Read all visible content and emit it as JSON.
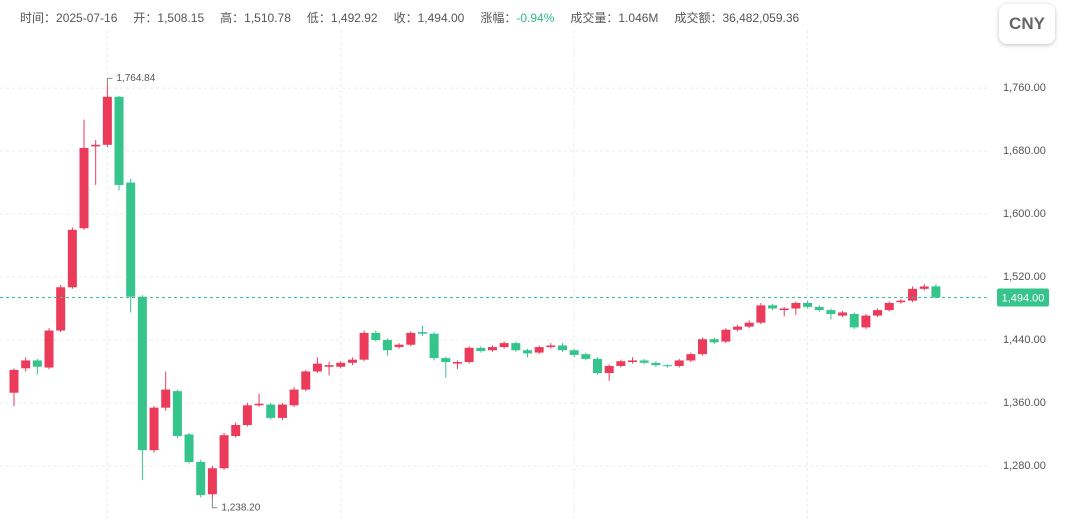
{
  "header": {
    "items": [
      {
        "label": "时间：",
        "value": "2025-07-16"
      },
      {
        "label": "开：",
        "value": "1,508.15"
      },
      {
        "label": "高：",
        "value": "1,510.78"
      },
      {
        "label": "低：",
        "value": "1,492.92"
      },
      {
        "label": "收：",
        "value": "1,494.00"
      },
      {
        "label": "涨幅：",
        "value": "-0.94%",
        "color": "#2dbd85"
      },
      {
        "label": "成交量：",
        "value": "1.046M"
      },
      {
        "label": "成交额：",
        "value": "36,482,059.36"
      }
    ]
  },
  "currency_button": "CNY",
  "chart_data": {
    "type": "candlestick",
    "up_color": "#ec3a5a",
    "down_color": "#35c48c",
    "open": [
      1373,
      1404,
      1414,
      1405,
      1452,
      1507,
      1582,
      1686,
      1688,
      1749,
      1640,
      1495,
      1300,
      1354,
      1375,
      1320,
      1285,
      1244,
      1277,
      1318,
      1332,
      1357,
      1358,
      1341,
      1357,
      1377,
      1400,
      1406,
      1406,
      1411,
      1415,
      1449,
      1440,
      1431,
      1434,
      1450,
      1448,
      1417,
      1410,
      1412,
      1430,
      1427,
      1431,
      1436,
      1427,
      1424,
      1431,
      1433,
      1427,
      1422,
      1416,
      1398,
      1407,
      1412,
      1414,
      1411,
      1408,
      1407,
      1414,
      1422,
      1441,
      1438,
      1453,
      1457,
      1462,
      1484,
      1478,
      1480,
      1487,
      1482,
      1478,
      1471,
      1473,
      1456,
      1471,
      1478,
      1488,
      1490,
      1505,
      1508.15
    ],
    "high": [
      1404,
      1418,
      1416,
      1455,
      1510,
      1583,
      1720,
      1694,
      1764.84,
      1750,
      1645,
      1497,
      1356,
      1400,
      1377,
      1322,
      1288,
      1280,
      1322,
      1335,
      1360,
      1372,
      1360,
      1360,
      1380,
      1402,
      1418,
      1412,
      1413,
      1418,
      1452,
      1452,
      1442,
      1436,
      1451,
      1458,
      1450,
      1419,
      1414,
      1432,
      1432,
      1433,
      1438,
      1438,
      1429,
      1433,
      1436,
      1436,
      1429,
      1424,
      1418,
      1409,
      1415,
      1418,
      1416,
      1413,
      1409,
      1416,
      1424,
      1443,
      1443,
      1455,
      1459,
      1465,
      1487,
      1486,
      1482,
      1489,
      1490,
      1484,
      1480,
      1477,
      1475,
      1473,
      1480,
      1489,
      1492,
      1508,
      1511,
      1510.78
    ],
    "low": [
      1356,
      1400,
      1396,
      1403,
      1450,
      1505,
      1580,
      1637,
      1685,
      1630,
      1475,
      1262,
      1297,
      1350,
      1315,
      1283,
      1240,
      1238.2,
      1275,
      1316,
      1330,
      1355,
      1339,
      1338,
      1355,
      1375,
      1398,
      1395,
      1404,
      1408,
      1413,
      1438,
      1420,
      1429,
      1432,
      1445,
      1414,
      1392,
      1403,
      1410,
      1424,
      1425,
      1429,
      1425,
      1418,
      1422,
      1429,
      1425,
      1418,
      1414,
      1396,
      1388,
      1405,
      1410,
      1409,
      1406,
      1405,
      1405,
      1412,
      1420,
      1435,
      1436,
      1451,
      1455,
      1460,
      1478,
      1470,
      1472,
      1480,
      1476,
      1466,
      1469,
      1454,
      1454,
      1469,
      1476,
      1486,
      1488,
      1503,
      1492.92
    ],
    "close": [
      1402,
      1414,
      1406,
      1452,
      1507,
      1580,
      1684,
      1688,
      1749,
      1637,
      1495,
      1300,
      1354,
      1377,
      1318,
      1285,
      1243,
      1277,
      1319,
      1332,
      1357,
      1359,
      1341,
      1358,
      1377,
      1400,
      1410,
      1408,
      1411,
      1415,
      1449,
      1440,
      1427,
      1434,
      1449,
      1448,
      1417,
      1412,
      1412,
      1430,
      1426,
      1431,
      1436,
      1427,
      1423,
      1431,
      1433,
      1427,
      1421,
      1416,
      1398,
      1407,
      1413,
      1414,
      1411,
      1408,
      1407,
      1414,
      1422,
      1441,
      1437,
      1453,
      1457,
      1462,
      1484,
      1480,
      1480,
      1487,
      1482,
      1478,
      1473,
      1475,
      1456,
      1471,
      1478,
      1487,
      1490,
      1505,
      1508,
      1494
    ],
    "ylim": [
      1210,
      1872
    ],
    "yticks": [
      {
        "value": 1280,
        "label": "1,280.00"
      },
      {
        "value": 1360,
        "label": "1,360.00"
      },
      {
        "value": 1440,
        "label": "1,440.00"
      },
      {
        "value": 1520,
        "label": "1,520.00"
      },
      {
        "value": 1600,
        "label": "1,600.00"
      },
      {
        "value": 1680,
        "label": "1,680.00"
      },
      {
        "value": 1760,
        "label": "1,760.00"
      }
    ],
    "grid": true,
    "last_price": {
      "value": 1494,
      "label": "1,494.00"
    },
    "annotations": [
      {
        "value": 1764.84,
        "label": "1,764.84",
        "at": "high"
      },
      {
        "value": 1238.2,
        "label": "1,238.20",
        "at": "low"
      }
    ]
  }
}
